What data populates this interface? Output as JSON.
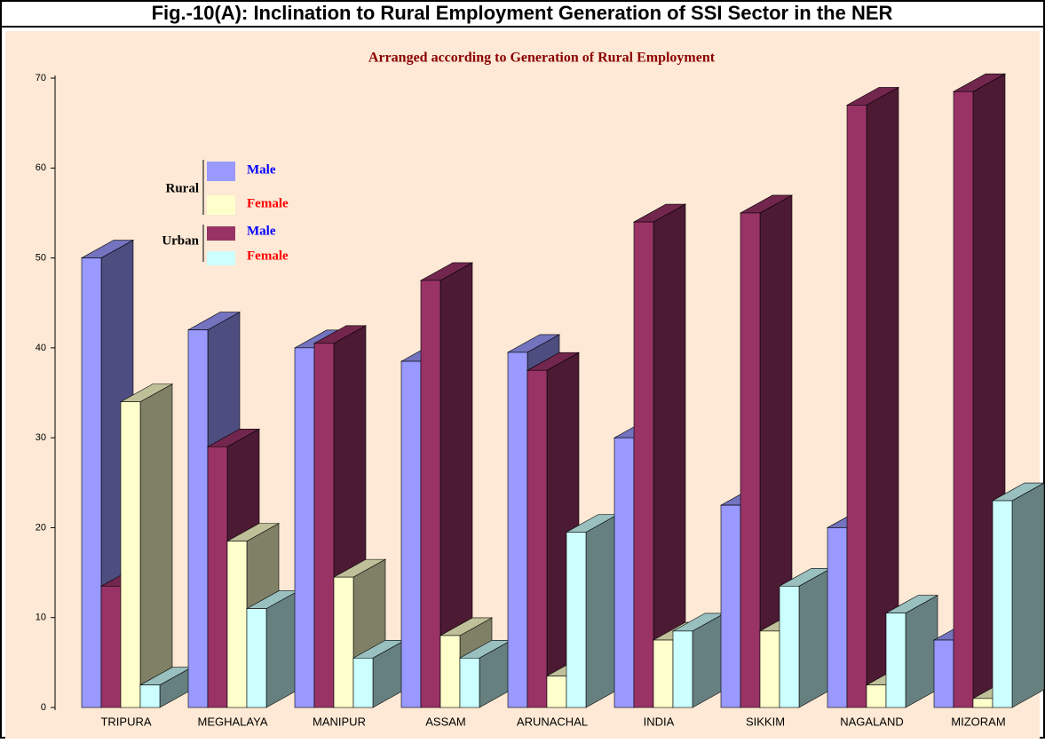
{
  "chart_data": {
    "type": "bar3d",
    "title": "Fig.-10(A): Inclination to Rural Employment Generation of SSI Sector in the NER",
    "subtitle": "Arranged according to Generation of Rural Employment",
    "categories": [
      "TRIPURA",
      "MEGHALAYA",
      "MANIPUR",
      "ASSAM",
      "ARUNACHAL",
      "INDIA",
      "SIKKIM",
      "NAGALAND",
      "MIZORAM"
    ],
    "series": [
      {
        "group": "Rural",
        "name": "Male",
        "color": "#9999ff",
        "values": [
          50,
          42,
          40,
          38.5,
          39.5,
          30,
          22.5,
          20,
          7.5
        ]
      },
      {
        "group": "Urban",
        "name": "Male",
        "color": "#993366",
        "values": [
          13.5,
          29,
          40.5,
          47.5,
          37.5,
          54,
          55,
          67,
          68.5
        ]
      },
      {
        "group": "Rural",
        "name": "Female",
        "color": "#ffffcc",
        "values": [
          34,
          18.5,
          14.5,
          8,
          3.5,
          7.5,
          8.5,
          2.5,
          1
        ]
      },
      {
        "group": "Urban",
        "name": "Female",
        "color": "#ccffff",
        "values": [
          2.5,
          11,
          5.5,
          5.5,
          19.5,
          8.5,
          13.5,
          10.5,
          23
        ]
      }
    ],
    "ylim": [
      0,
      70
    ],
    "yticks": [
      0,
      10,
      20,
      30,
      40,
      50,
      60,
      70
    ]
  }
}
